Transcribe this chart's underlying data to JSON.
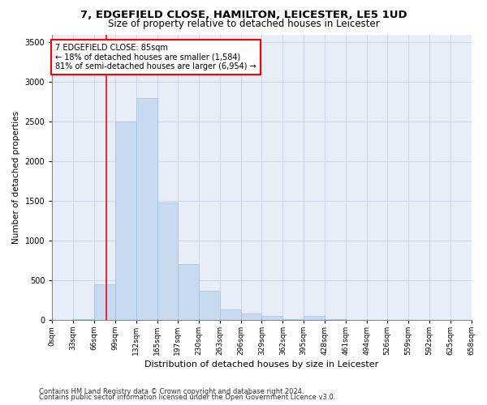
{
  "title1": "7, EDGEFIELD CLOSE, HAMILTON, LEICESTER, LE5 1UD",
  "title2": "Size of property relative to detached houses in Leicester",
  "xlabel": "Distribution of detached houses by size in Leicester",
  "ylabel": "Number of detached properties",
  "bin_edges": [
    0,
    33,
    66,
    99,
    132,
    165,
    197,
    230,
    263,
    296,
    329,
    362,
    395,
    428,
    461,
    494,
    526,
    559,
    592,
    625,
    658
  ],
  "bar_heights": [
    0,
    5,
    450,
    2500,
    2800,
    1480,
    700,
    370,
    130,
    75,
    45,
    5,
    45,
    5,
    0,
    0,
    0,
    0,
    0,
    0
  ],
  "bar_color": "#c8daf0",
  "bar_edgecolor": "#a0bee0",
  "bar_linewidth": 0.5,
  "grid_color": "#ccd6e8",
  "background_color": "#e8eef8",
  "property_line_x": 85,
  "property_line_color": "red",
  "annotation_text": "7 EDGEFIELD CLOSE: 85sqm\n← 18% of detached houses are smaller (1,584)\n81% of semi-detached houses are larger (6,954) →",
  "annotation_box_color": "white",
  "annotation_box_edgecolor": "red",
  "ylim": [
    0,
    3600
  ],
  "yticks": [
    0,
    500,
    1000,
    1500,
    2000,
    2500,
    3000,
    3500
  ],
  "footer1": "Contains HM Land Registry data © Crown copyright and database right 2024.",
  "footer2": "Contains public sector information licensed under the Open Government Licence v3.0.",
  "tick_labels": [
    "0sqm",
    "33sqm",
    "66sqm",
    "99sqm",
    "132sqm",
    "165sqm",
    "197sqm",
    "230sqm",
    "263sqm",
    "296sqm",
    "329sqm",
    "362sqm",
    "395sqm",
    "428sqm",
    "461sqm",
    "494sqm",
    "526sqm",
    "559sqm",
    "592sqm",
    "625sqm",
    "658sqm"
  ],
  "title1_fontsize": 9.5,
  "title2_fontsize": 8.5,
  "xlabel_fontsize": 8,
  "ylabel_fontsize": 7.5,
  "tick_fontsize": 6.5,
  "ytick_fontsize": 7,
  "footer_fontsize": 6,
  "annotation_fontsize": 7
}
